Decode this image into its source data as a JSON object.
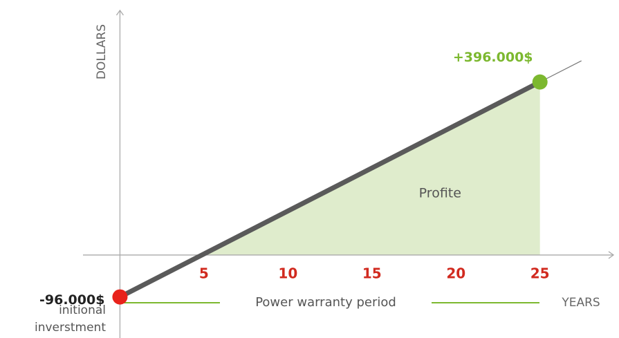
{
  "chart_data": {
    "type": "line",
    "x": [
      0,
      25
    ],
    "values": [
      -96000,
      396000
    ],
    "value_labels": [
      "-96.000$",
      "+396.000$"
    ],
    "color": "#5a5a5a",
    "point_colors": [
      "#e8221b",
      "#7cb82f"
    ],
    "area_color": "#dfeccc",
    "xlim": [
      -2.2,
      29.5
    ],
    "ylim": [
      -190000,
      560000
    ],
    "xticks": [
      5,
      10,
      15,
      20,
      25
    ],
    "ylabel": "DOLLARS",
    "xlabel": "YEARS",
    "annotations": {
      "area": "Profite",
      "period": "Power warranty period",
      "start_note": [
        "initional",
        "inverstment"
      ]
    }
  }
}
